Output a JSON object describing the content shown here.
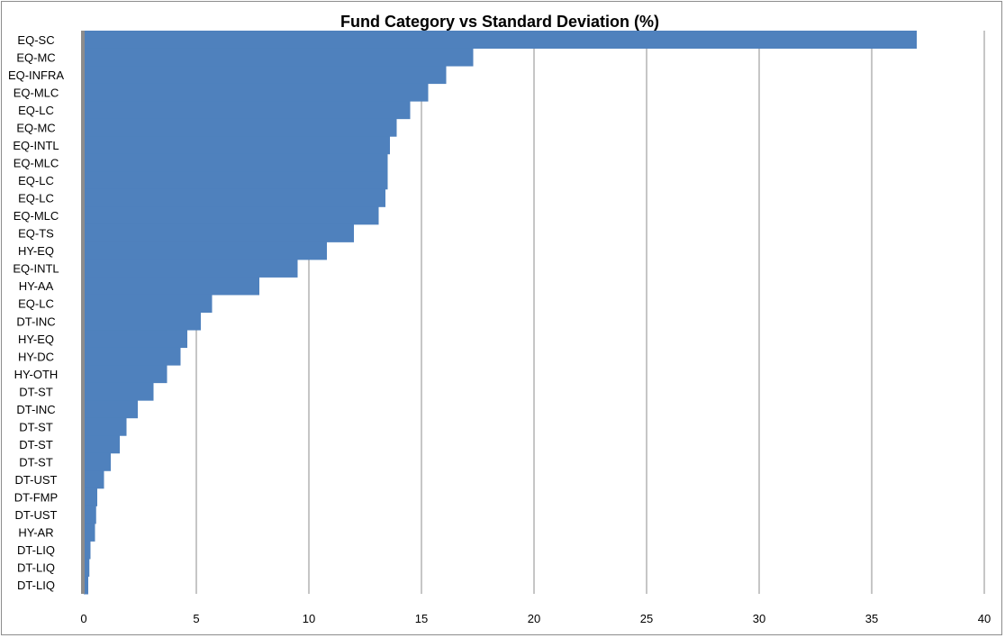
{
  "chart_data": {
    "type": "bar",
    "orientation": "horizontal",
    "title": "Fund Category vs Standard Deviation (%)",
    "xlabel": "",
    "ylabel": "",
    "xlim": [
      0,
      40
    ],
    "x_ticks": [
      0,
      5,
      10,
      15,
      20,
      25,
      30,
      35,
      40
    ],
    "grid": "vertical",
    "legend": "none",
    "bar_color": "#4f81bd",
    "categories": [
      "EQ-SC",
      "EQ-MC",
      "EQ-INFRA",
      "EQ-MLC",
      "EQ-LC",
      "EQ-MC",
      "EQ-INTL",
      "EQ-MLC",
      "EQ-LC",
      "EQ-LC",
      "EQ-MLC",
      "EQ-TS",
      "HY-EQ",
      "EQ-INTL",
      "HY-AA",
      "EQ-LC",
      "DT-INC",
      "HY-EQ",
      "HY-DC",
      "HY-OTH",
      "DT-ST",
      "DT-INC",
      "DT-ST",
      "DT-ST",
      "DT-ST",
      "DT-UST",
      "DT-FMP",
      "DT-UST",
      "HY-AR",
      "DT-LIQ",
      "DT-LIQ",
      "DT-LIQ"
    ],
    "values": [
      37.0,
      17.3,
      16.1,
      15.3,
      14.5,
      13.9,
      13.6,
      13.5,
      13.5,
      13.4,
      13.1,
      12.0,
      10.8,
      9.5,
      7.8,
      5.7,
      5.2,
      4.6,
      4.3,
      3.7,
      3.1,
      2.4,
      1.9,
      1.6,
      1.2,
      0.9,
      0.6,
      0.55,
      0.5,
      0.3,
      0.25,
      0.2
    ]
  }
}
